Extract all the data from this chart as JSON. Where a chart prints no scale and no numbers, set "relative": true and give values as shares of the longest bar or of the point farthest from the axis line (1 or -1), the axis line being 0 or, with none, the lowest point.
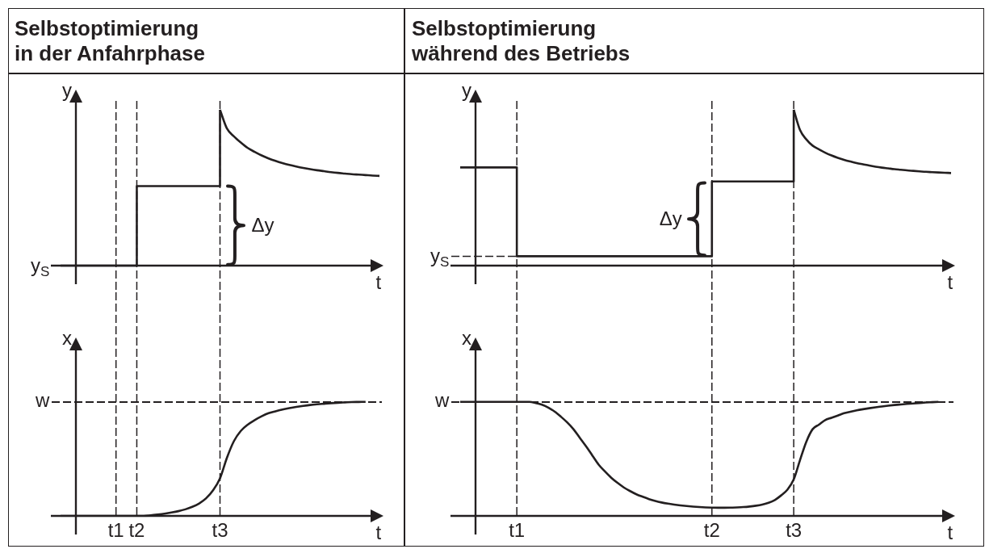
{
  "chart_data": [
    {
      "type": "step",
      "title": "Selbstoptimierung\nin der Anfahrphase",
      "xlabel": "t",
      "ylabel": "y",
      "relative": true,
      "tick_labels": false,
      "categories": [
        null,
        null,
        null,
        null,
        null,
        null,
        null,
        null,
        "t1",
        null,
        null,
        "t2",
        null,
        null,
        null,
        null,
        null,
        null,
        null,
        null,
        null,
        null,
        null,
        "t3",
        null,
        null,
        null,
        null,
        null,
        null,
        null,
        null,
        null,
        null,
        null,
        null,
        null,
        null,
        null,
        null,
        null,
        null,
        null,
        null,
        null,
        null,
        null
      ],
      "series": [
        {
          "type": "step",
          "color": "#231f20",
          "values": [
            0,
            0,
            0,
            0,
            0,
            0,
            0,
            0,
            0,
            0,
            0,
            0.51,
            0.51,
            0.51,
            0.51,
            0.51,
            0.51,
            0.51,
            0.51,
            0.51,
            0.51,
            0.51,
            0.51,
            1,
            null,
            null,
            null,
            null,
            null,
            null,
            null,
            null,
            null,
            null,
            null,
            null,
            null,
            null,
            null,
            null,
            null,
            null,
            null,
            null,
            null,
            null,
            null
          ]
        },
        {
          "type": "line",
          "color": "#231f20",
          "values": [
            null,
            null,
            null,
            null,
            null,
            null,
            null,
            null,
            null,
            null,
            null,
            null,
            null,
            null,
            null,
            null,
            null,
            null,
            null,
            null,
            null,
            null,
            null,
            1,
            0.88,
            0.83,
            0.79,
            0.755,
            0.73,
            0.707,
            0.688,
            0.672,
            0.658,
            0.646,
            0.636,
            0.627,
            0.619,
            0.612,
            0.606,
            0.6,
            0.595,
            0.591,
            0.587,
            0.584,
            0.581,
            0.578,
            0.576
          ]
        }
      ],
      "ref_lines": [
        {
          "axis": "x",
          "value": "t1",
          "line_style": "dashed",
          "color": "#231f20"
        },
        {
          "axis": "x",
          "value": "t2",
          "line_style": "dashed",
          "color": "#231f20"
        },
        {
          "axis": "x",
          "value": "t3",
          "line_style": "dashed",
          "color": "#231f20"
        }
      ],
      "annotations": [
        "y$_{S}$",
        {
          "text": "Δy",
          "x": "t3",
          "y": 0.26
        }
      ]
    },
    {
      "type": "step",
      "title": "Selbstoptimierung\nwährend des Betriebs",
      "xlabel": "t",
      "ylabel": "y",
      "relative": true,
      "tick_labels": false,
      "categories": [
        null,
        null,
        null,
        null,
        null,
        null,
        null,
        null,
        null,
        "t1",
        null,
        null,
        null,
        null,
        null,
        null,
        null,
        null,
        null,
        null,
        null,
        null,
        null,
        null,
        null,
        null,
        null,
        null,
        null,
        null,
        null,
        null,
        null,
        null,
        null,
        null,
        null,
        null,
        null,
        null,
        "t2",
        null,
        null,
        null,
        null,
        null,
        null,
        null,
        null,
        null,
        null,
        null,
        null,
        "t3",
        null,
        null,
        null,
        null,
        null,
        null,
        null,
        null,
        null,
        null,
        null,
        null,
        null,
        null,
        null,
        null,
        null,
        null,
        null,
        null,
        null,
        null,
        null,
        null,
        null
      ],
      "series": [
        {
          "type": "step",
          "color": "#231f20",
          "values": [
            0.63,
            0.63,
            0.63,
            0.63,
            0.63,
            0.63,
            0.63,
            0.63,
            0.63,
            0.06,
            0.06,
            0.06,
            0.06,
            0.06,
            0.06,
            0.06,
            0.06,
            0.06,
            0.06,
            0.06,
            0.06,
            0.06,
            0.06,
            0.06,
            0.06,
            0.06,
            0.06,
            0.06,
            0.06,
            0.06,
            0.06,
            0.06,
            0.06,
            0.06,
            0.06,
            0.06,
            0.06,
            0.06,
            0.06,
            0.06,
            0.54,
            0.54,
            0.54,
            0.54,
            0.54,
            0.54,
            0.54,
            0.54,
            0.54,
            0.54,
            0.54,
            0.54,
            0.54,
            1,
            null,
            null,
            null,
            null,
            null,
            null,
            null,
            null,
            null,
            null,
            null,
            null,
            null,
            null,
            null,
            null,
            null,
            null,
            null,
            null,
            null,
            null,
            null,
            null,
            null
          ]
        },
        {
          "type": "line",
          "color": "#231f20",
          "values": [
            null,
            null,
            null,
            null,
            null,
            null,
            null,
            null,
            null,
            null,
            null,
            null,
            null,
            null,
            null,
            null,
            null,
            null,
            null,
            null,
            null,
            null,
            null,
            null,
            null,
            null,
            null,
            null,
            null,
            null,
            null,
            null,
            null,
            null,
            null,
            null,
            null,
            null,
            null,
            null,
            null,
            null,
            null,
            null,
            null,
            null,
            null,
            null,
            null,
            null,
            null,
            null,
            null,
            1,
            0.87,
            0.81,
            0.77,
            0.747,
            0.725,
            0.707,
            0.692,
            0.679,
            0.668,
            0.658,
            0.65,
            0.642,
            0.635,
            0.629,
            0.624,
            0.619,
            0.615,
            0.611,
            0.608,
            0.605,
            0.602,
            0.6,
            0.598,
            0.596,
            0.594
          ]
        }
      ],
      "ref_lines": [
        {
          "axis": "x",
          "value": "t1",
          "line_style": "dashed",
          "color": "#231f20"
        },
        {
          "axis": "x",
          "value": "t2",
          "line_style": "dashed",
          "color": "#231f20"
        },
        {
          "axis": "x",
          "value": "t3",
          "line_style": "dashed",
          "color": "#231f20"
        }
      ],
      "annotations": [
        "y$_{S}$",
        {
          "text": "Δy",
          "x": "t2",
          "y": 0.3
        }
      ]
    },
    {
      "type": "line",
      "xlabel": "t",
      "ylabel": "x",
      "relative": true,
      "tick_labels": "x",
      "categories": [
        null,
        null,
        null,
        null,
        null,
        null,
        null,
        null,
        "t1",
        null,
        null,
        "t2",
        null,
        null,
        null,
        null,
        null,
        null,
        null,
        null,
        null,
        null,
        null,
        "t3",
        null,
        null,
        null,
        null,
        null,
        null,
        null,
        null,
        null,
        null,
        null,
        null,
        null,
        null,
        null,
        null,
        null,
        null,
        null,
        null,
        null,
        null,
        null
      ],
      "series": [
        {
          "color": "#231f20",
          "values": [
            0,
            0,
            0,
            0,
            0,
            0,
            0,
            0,
            0,
            0,
            0,
            0,
            0,
            0.005,
            0.012,
            0.02,
            0.03,
            0.042,
            0.058,
            0.08,
            0.11,
            0.155,
            0.225,
            0.33,
            0.51,
            0.655,
            0.745,
            0.8,
            0.84,
            0.873,
            0.9,
            0.917,
            0.932,
            0.945,
            0.955,
            0.964,
            0.972,
            0.978,
            0.983,
            0.988,
            0.992,
            0.995,
            0.998,
            0.999,
            1,
            null,
            null
          ]
        }
      ],
      "ref_lines": [
        {
          "axis": "x",
          "value": "t1",
          "line_style": "dashed",
          "color": "#231f20"
        },
        {
          "axis": "x",
          "value": "t2",
          "line_style": "dashed",
          "color": "#231f20"
        },
        {
          "axis": "x",
          "value": "t3",
          "line_style": "dashed",
          "color": "#231f20"
        },
        {
          "axis": "y",
          "value": 1,
          "label": "w",
          "line_style": "dashed",
          "color": "#231f20"
        }
      ]
    },
    {
      "type": "line",
      "xlabel": "t",
      "ylabel": "x",
      "relative": true,
      "tick_labels": "x",
      "categories": [
        null,
        null,
        null,
        null,
        null,
        null,
        null,
        null,
        null,
        "t1",
        null,
        null,
        null,
        null,
        null,
        null,
        null,
        null,
        null,
        null,
        null,
        null,
        null,
        null,
        null,
        null,
        null,
        null,
        null,
        null,
        null,
        null,
        null,
        null,
        null,
        null,
        null,
        null,
        null,
        null,
        "t2",
        null,
        null,
        null,
        null,
        null,
        null,
        null,
        null,
        null,
        null,
        null,
        null,
        "t3",
        null,
        null,
        null,
        null,
        null,
        null,
        null,
        null,
        null,
        null,
        null,
        null,
        null,
        null,
        null,
        null,
        null,
        null,
        null,
        null,
        null,
        null,
        null,
        null,
        null
      ],
      "series": [
        {
          "color": "#231f20",
          "values": [
            1,
            1,
            1,
            1,
            1,
            1,
            1,
            1,
            1,
            1,
            1,
            1,
            0.99,
            0.975,
            0.95,
            0.915,
            0.87,
            0.82,
            0.76,
            0.685,
            0.61,
            0.53,
            0.45,
            0.39,
            0.335,
            0.29,
            0.25,
            0.218,
            0.19,
            0.168,
            0.148,
            0.131,
            0.118,
            0.108,
            0.1,
            0.093,
            0.087,
            0.082,
            0.078,
            0.075,
            0.073,
            0.072,
            0.072,
            0.073,
            0.075,
            0.078,
            0.083,
            0.09,
            0.1,
            0.115,
            0.14,
            0.18,
            0.23,
            0.32,
            0.49,
            0.65,
            0.76,
            0.8,
            0.84,
            0.86,
            0.88,
            0.9,
            0.913,
            0.925,
            0.935,
            0.944,
            0.952,
            0.959,
            0.966,
            0.972,
            0.977,
            0.982,
            0.986,
            0.99,
            0.994,
            0.997,
            1,
            null,
            null
          ]
        }
      ],
      "ref_lines": [
        {
          "axis": "x",
          "value": "t1",
          "line_style": "dashed",
          "color": "#231f20"
        },
        {
          "axis": "x",
          "value": "t2",
          "line_style": "dashed",
          "color": "#231f20"
        },
        {
          "axis": "x",
          "value": "t3",
          "line_style": "dashed",
          "color": "#231f20"
        },
        {
          "axis": "y",
          "value": 1,
          "label": "w",
          "line_style": "dashed",
          "color": "#231f20"
        }
      ]
    }
  ]
}
